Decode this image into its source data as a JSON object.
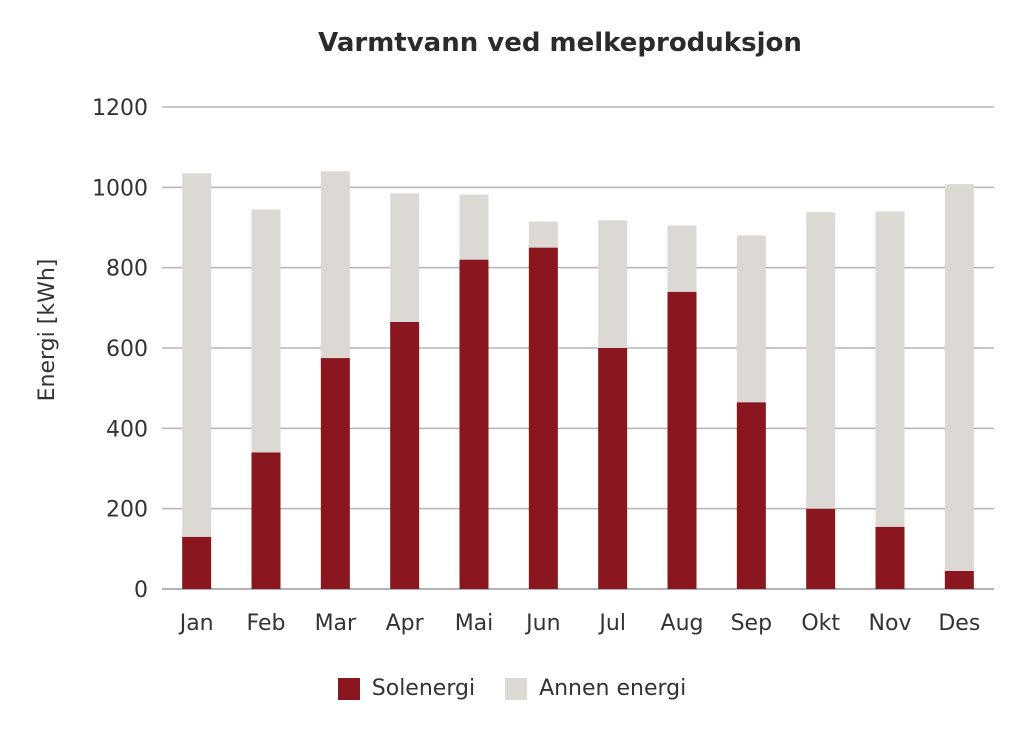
{
  "chart_data": {
    "type": "bar",
    "stacked": true,
    "title": "Varmtvann ved melkeproduksjon",
    "ylabel": "Energi [kWh]",
    "xlabel": "",
    "ylim": [
      0,
      1200
    ],
    "yticks": [
      0,
      200,
      400,
      600,
      800,
      1000,
      1200
    ],
    "grid": true,
    "legend_position": "bottom",
    "categories": [
      "Jan",
      "Feb",
      "Mar",
      "Apr",
      "Mai",
      "Jun",
      "Jul",
      "Aug",
      "Sep",
      "Okt",
      "Nov",
      "Des"
    ],
    "series": [
      {
        "name": "Solenergi",
        "color": "#8a1620",
        "values": [
          130,
          340,
          575,
          665,
          820,
          850,
          600,
          740,
          465,
          200,
          155,
          45
        ]
      },
      {
        "name": "Annen energi",
        "color": "#dcd9d5",
        "values": [
          905,
          605,
          465,
          320,
          162,
          65,
          318,
          165,
          415,
          738,
          785,
          963
        ]
      }
    ]
  }
}
